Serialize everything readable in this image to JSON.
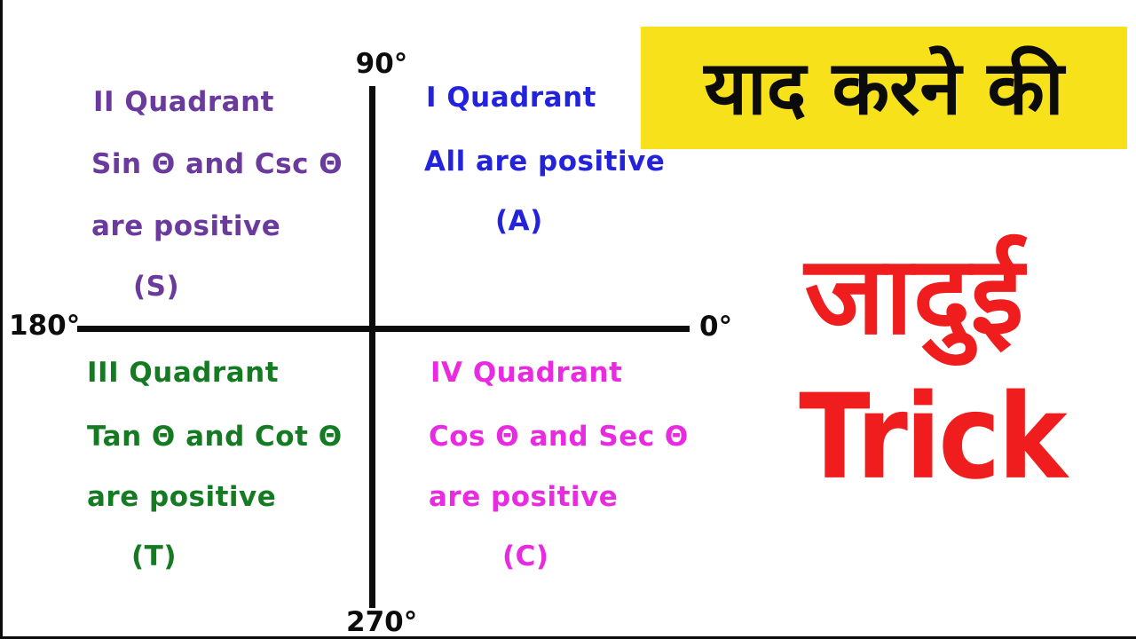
{
  "diagram": {
    "axis_labels": {
      "top": "90°",
      "right": "0°",
      "left": "180°",
      "bottom": "270°"
    },
    "quadrants": {
      "q1": {
        "title": "I Quadrant",
        "line2": "All are positive",
        "letter": "(A)",
        "color": "#2323DC"
      },
      "q2": {
        "title": "II Quadrant",
        "line2": "Sin Θ and Csc Θ",
        "line3": "are positive",
        "letter": "(S)",
        "color": "#6A3A9C"
      },
      "q3": {
        "title": "III Quadrant",
        "line2": "Tan Θ and Cot Θ",
        "line3": "are positive",
        "letter": "(T)",
        "color": "#157B22"
      },
      "q4": {
        "title": "IV Quadrant",
        "line2": "Cos Θ and Sec Θ",
        "line3": "are positive",
        "letter": "(C)",
        "color": "#E82BE0"
      }
    }
  },
  "side_panel": {
    "highlight_text": "याद करने की",
    "highlight_bg": "#F6E11B",
    "highlight_text_color": "#0B0B0B",
    "word_hindi": "जादुई",
    "word_english": "Trick",
    "accent_red": "#EF1D1D"
  }
}
